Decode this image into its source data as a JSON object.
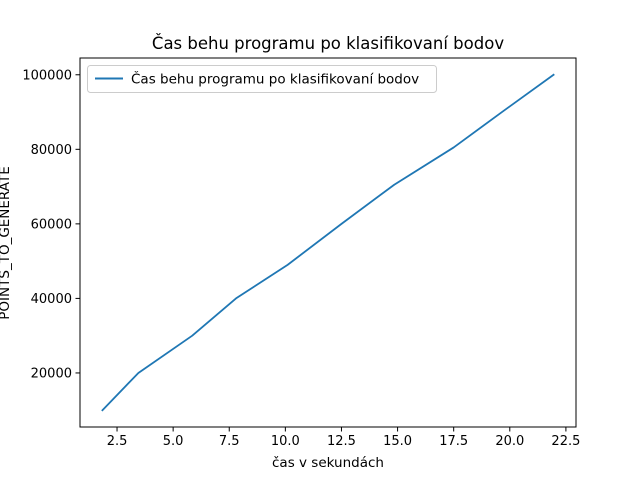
{
  "chart_data": {
    "type": "line",
    "title": "Čas behu programu po klasifikovaní bodov",
    "xlabel": "čas v sekundách",
    "ylabel": "POINTS_TO_GENERATE",
    "x": [
      1.85,
      3.45,
      5.85,
      7.8,
      10.1,
      12.5,
      14.85,
      17.5,
      19.65,
      21.95
    ],
    "series": [
      {
        "name": "Čas behu programu po klasifikovaní bodov",
        "color": "#1f77b4",
        "values": [
          10000,
          20000,
          30000,
          40000,
          49000,
          60000,
          70500,
          80500,
          90000,
          100000
        ]
      }
    ],
    "xlim": [
      0.85,
      22.95
    ],
    "ylim": [
      5500,
      104500
    ],
    "xticks": [
      2.5,
      5.0,
      7.5,
      10.0,
      12.5,
      15.0,
      17.5,
      20.0,
      22.5
    ],
    "xtick_labels": [
      "2.5",
      "5.0",
      "7.5",
      "10.0",
      "12.5",
      "15.0",
      "17.5",
      "20.0",
      "22.5"
    ],
    "yticks": [
      20000,
      40000,
      60000,
      80000,
      100000
    ],
    "ytick_labels": [
      "20000",
      "40000",
      "60000",
      "80000",
      "100000"
    ],
    "grid": false,
    "legend_position": "top-left"
  }
}
